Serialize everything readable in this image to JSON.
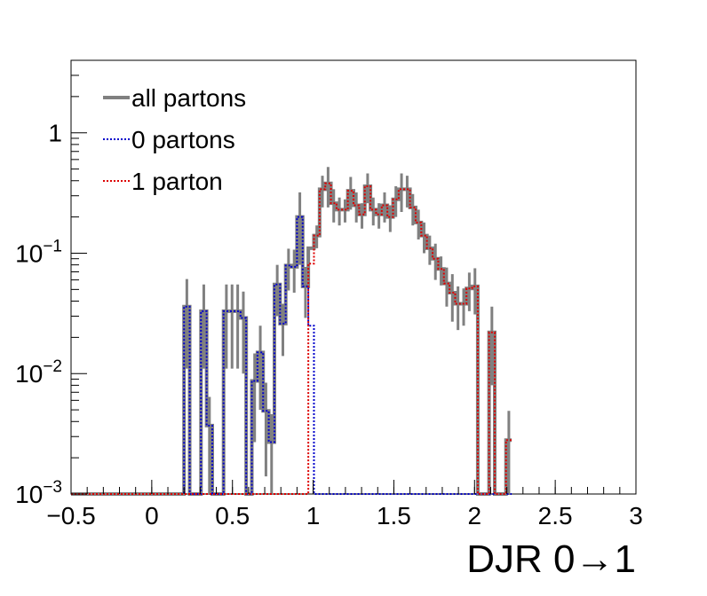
{
  "chart_data": {
    "type": "histogram",
    "xlabel": "DJR 0→1",
    "ylabel": "",
    "xlim": [
      -0.5,
      3.0
    ],
    "ylim": [
      0.001,
      4.0
    ],
    "y_scale": "log",
    "x_ticks": [
      "−0.5",
      "0",
      "0.5",
      "1",
      "1.5",
      "2",
      "2.5",
      "3"
    ],
    "x_tick_values": [
      -0.5,
      0,
      0.5,
      1,
      1.5,
      2,
      2.5,
      3
    ],
    "y_ticks": [
      {
        "value": 1,
        "base": "1",
        "exp": ""
      },
      {
        "value": 0.1,
        "base": "10",
        "exp": "−1"
      },
      {
        "value": 0.01,
        "base": "10",
        "exp": "−2"
      },
      {
        "value": 0.001,
        "base": "10",
        "exp": "−3"
      }
    ],
    "bin_start": -0.5,
    "bin_width": 0.035,
    "legend_position": "top-left",
    "grid": false,
    "series": [
      {
        "name": "all partons",
        "color": "#808080",
        "style": "solid",
        "values": [
          0,
          0,
          0,
          0,
          0,
          0,
          0,
          0,
          0,
          0,
          0,
          0,
          0,
          0,
          0,
          0,
          0,
          0,
          0,
          0,
          0.036,
          0.0009,
          0.0009,
          0.033,
          0.0037,
          0.0009,
          0.0009,
          0.033,
          0.033,
          0.033,
          0.029,
          0.0009,
          0.0087,
          0.015,
          0.0049,
          0.0027,
          0.055,
          0.026,
          0.079,
          0.077,
          0.2,
          0.053,
          0.11,
          0.14,
          0.34,
          0.38,
          0.26,
          0.23,
          0.23,
          0.33,
          0.25,
          0.21,
          0.36,
          0.23,
          0.21,
          0.25,
          0.2,
          0.28,
          0.34,
          0.34,
          0.24,
          0.18,
          0.14,
          0.11,
          0.09,
          0.074,
          0.056,
          0.047,
          0.038,
          0.038,
          0.051,
          0.053,
          0.0009,
          0.0009,
          0.022,
          0.0009,
          0.0009,
          0.0028
        ],
        "errors": [
          0,
          0,
          0,
          0,
          0,
          0,
          0,
          0,
          0,
          0,
          0,
          0,
          0,
          0,
          0,
          0,
          0,
          0,
          0,
          0,
          0.025,
          0,
          0,
          0.022,
          0.0027,
          0,
          0,
          0.022,
          0.022,
          0.022,
          0.019,
          0,
          0.006,
          0.01,
          0.0035,
          0.0019,
          0.025,
          0.012,
          0.03,
          0.03,
          0.12,
          0.024,
          0,
          0.03,
          0.1,
          0.14,
          0.08,
          0.06,
          0.05,
          0.1,
          0.07,
          0.05,
          0.1,
          0.06,
          0.05,
          0.07,
          0.05,
          0.08,
          0.12,
          0.1,
          0.07,
          0.05,
          0.04,
          0.03,
          0.03,
          0.02,
          0.02,
          0.02,
          0.015,
          0.013,
          0.018,
          0.022,
          0,
          0,
          0.014,
          0,
          0,
          0.0021
        ]
      },
      {
        "name": "0 partons",
        "color": "#0000cc",
        "style": "dotted",
        "values": [
          0,
          0,
          0,
          0,
          0,
          0,
          0,
          0,
          0,
          0,
          0,
          0,
          0,
          0,
          0,
          0,
          0,
          0,
          0,
          0,
          0.036,
          0.0009,
          0.0009,
          0.033,
          0.0037,
          0.0009,
          0.0009,
          0.033,
          0.033,
          0.033,
          0.029,
          0.0009,
          0.0087,
          0.015,
          0.0049,
          0.0027,
          0.055,
          0.026,
          0.079,
          0.077,
          0.2,
          0.053,
          0.025,
          0,
          0,
          0,
          0,
          0,
          0,
          0,
          0,
          0,
          0,
          0,
          0,
          0,
          0,
          0,
          0,
          0,
          0,
          0,
          0,
          0,
          0,
          0,
          0,
          0,
          0,
          0,
          0,
          0,
          0,
          0,
          0,
          0,
          0,
          0
        ],
        "errors": []
      },
      {
        "name": "1 parton",
        "color": "#dd0000",
        "style": "dotted",
        "values": [
          0,
          0,
          0,
          0,
          0,
          0,
          0,
          0,
          0,
          0,
          0,
          0,
          0,
          0,
          0,
          0,
          0,
          0,
          0,
          0,
          0,
          0,
          0,
          0,
          0,
          0,
          0,
          0,
          0,
          0,
          0,
          0,
          0,
          0,
          0,
          0,
          0,
          0,
          0,
          0,
          0,
          0,
          0.082,
          0.14,
          0.34,
          0.38,
          0.26,
          0.23,
          0.23,
          0.33,
          0.25,
          0.21,
          0.36,
          0.23,
          0.21,
          0.25,
          0.2,
          0.28,
          0.34,
          0.34,
          0.24,
          0.18,
          0.14,
          0.11,
          0.09,
          0.074,
          0.056,
          0.047,
          0.038,
          0.038,
          0.051,
          0.053,
          0.0009,
          0.0009,
          0.022,
          0.0009,
          0.0009,
          0.0028
        ],
        "errors": []
      }
    ]
  }
}
